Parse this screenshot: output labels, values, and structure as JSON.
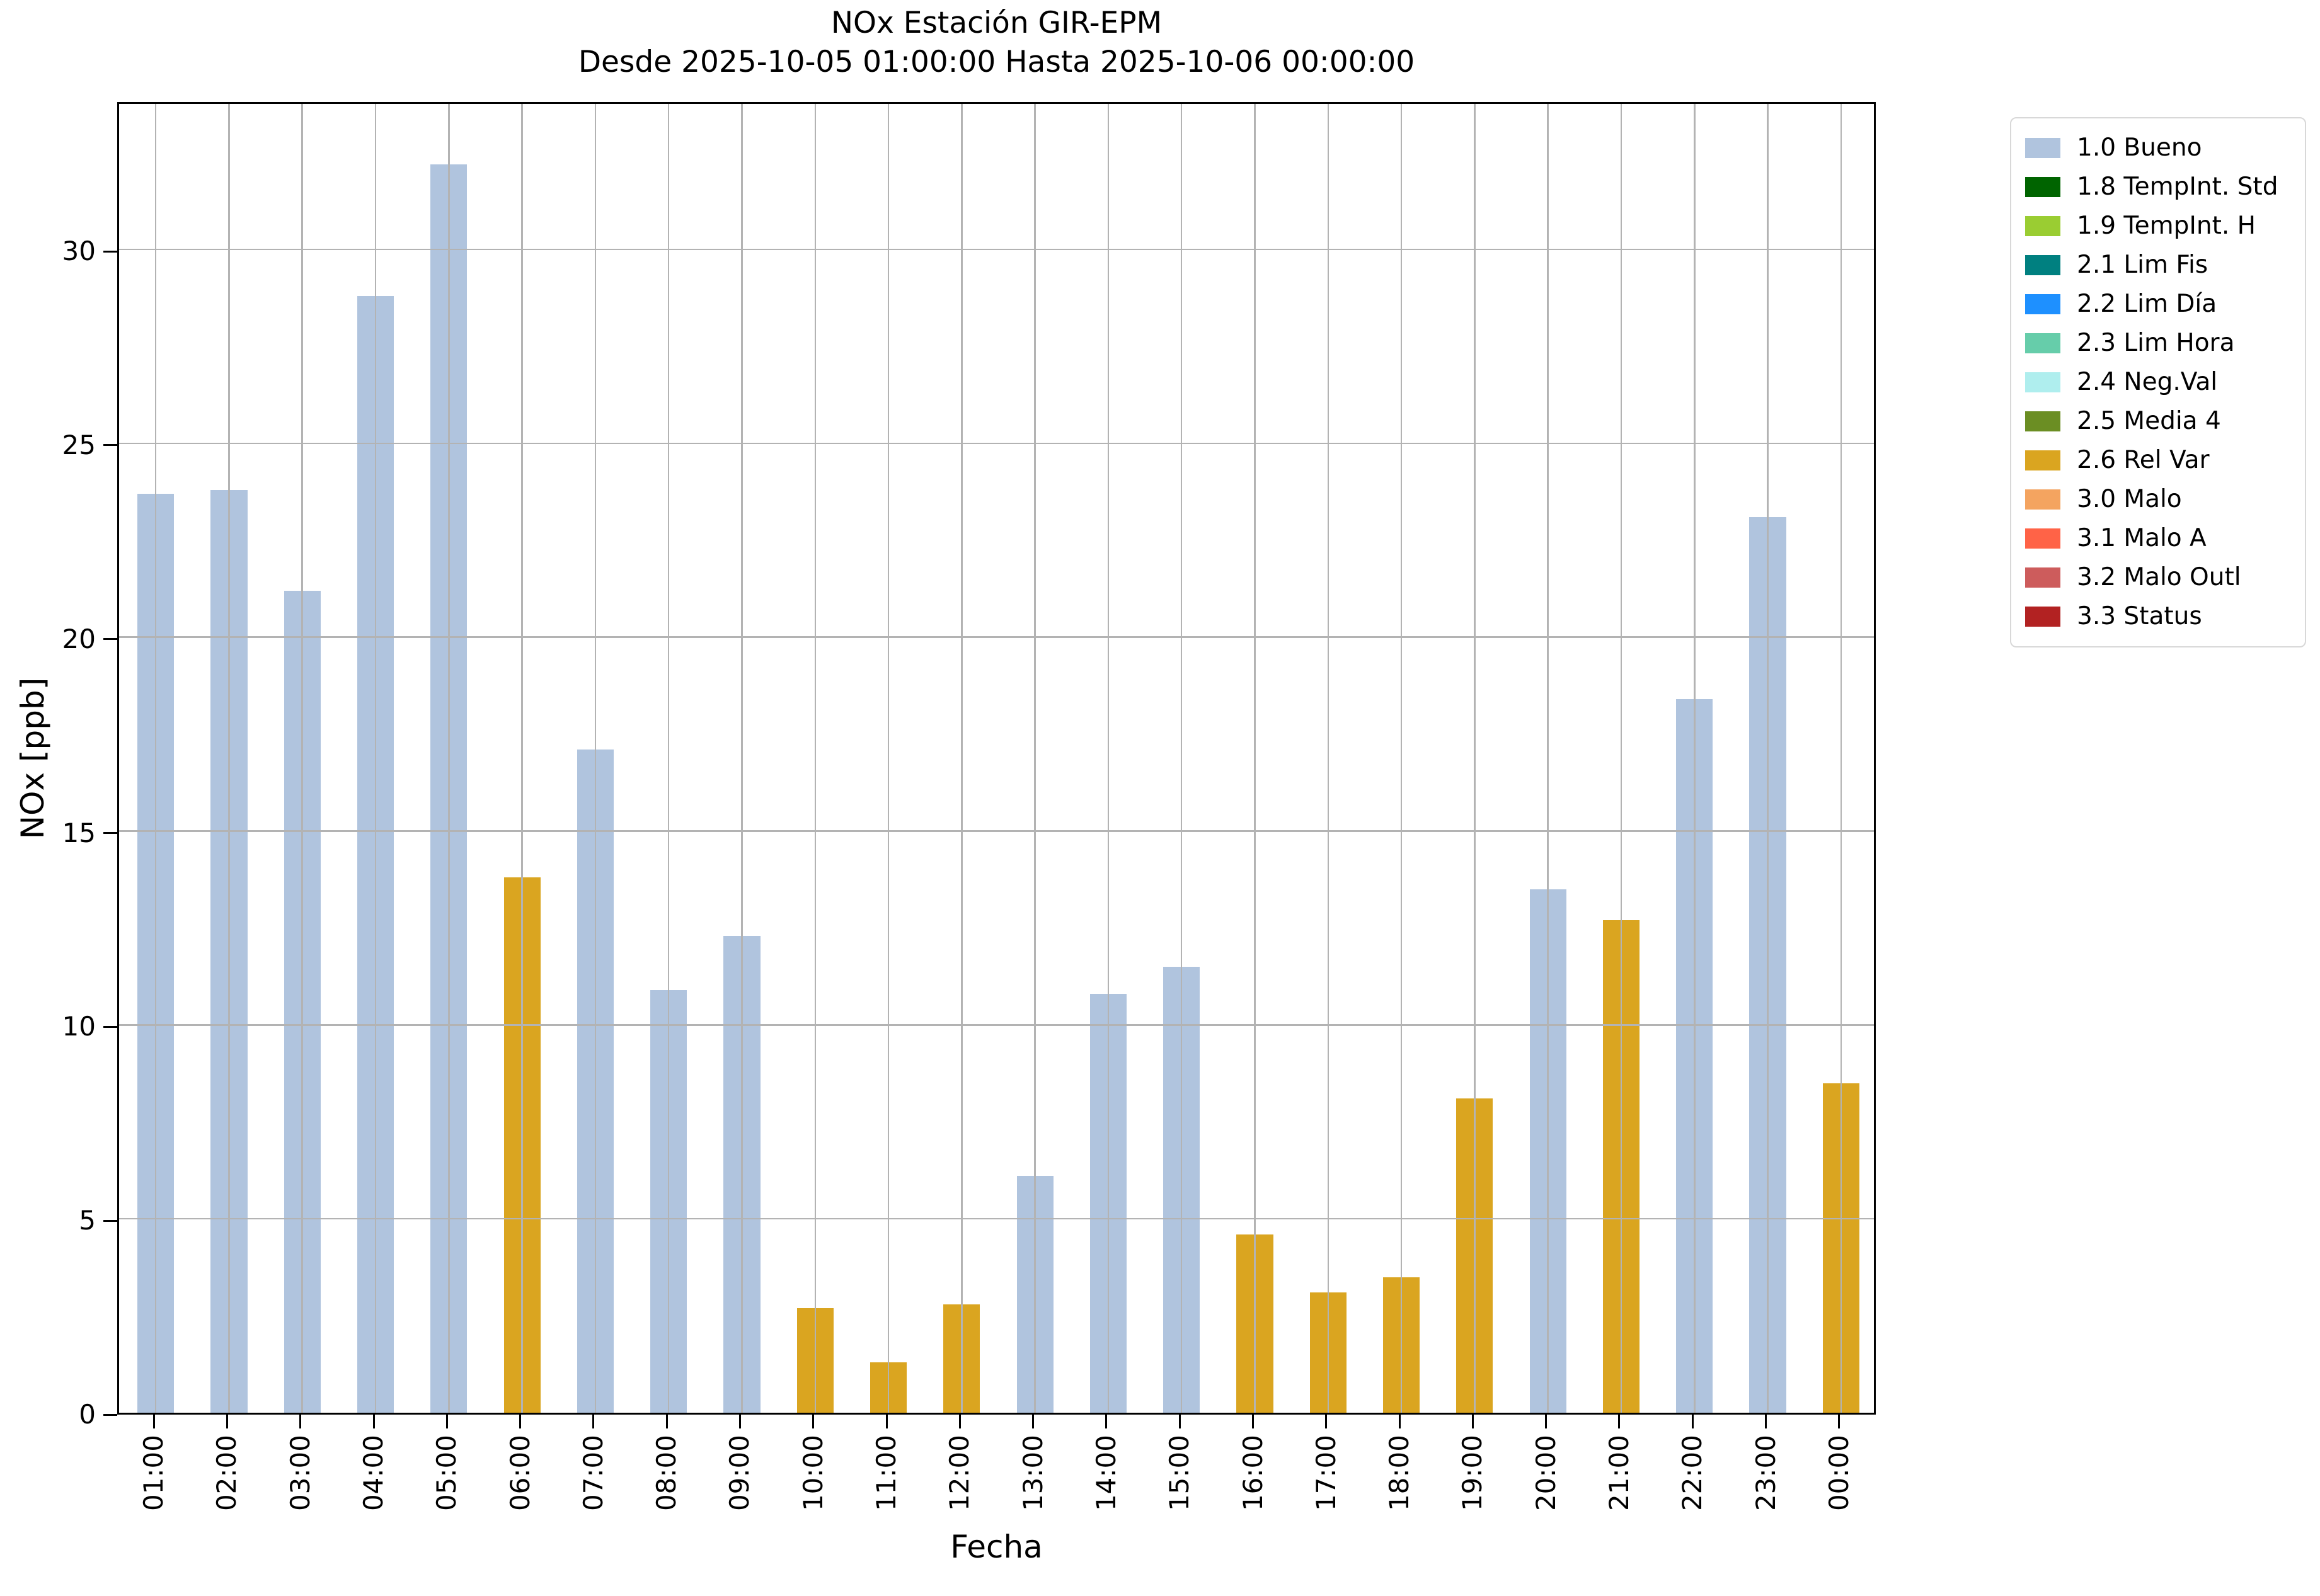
{
  "title": {
    "line1": "NOx Estación GIR-EPM",
    "line2": "Desde 2025-10-05 01:00:00 Hasta 2025-10-06 00:00:00"
  },
  "axes": {
    "ylabel": "NOx [ppb]",
    "xlabel": "Fecha"
  },
  "colors": {
    "bar_bueno": "#b0c4de",
    "bar_relvar": "#daa520",
    "grid": "#b3b3b3",
    "spine": "#000000",
    "legend_border": "#d8d8d8"
  },
  "legend": {
    "items": [
      {
        "label": "1.0 Bueno",
        "color": "#b0c4de"
      },
      {
        "label": "1.8 TempInt. Std",
        "color": "#006400"
      },
      {
        "label": "1.9 TempInt. H",
        "color": "#9acd32"
      },
      {
        "label": "2.1 Lim Fis",
        "color": "#008080"
      },
      {
        "label": "2.2 Lim Día",
        "color": "#1e90ff"
      },
      {
        "label": "2.3 Lim Hora",
        "color": "#66cdaa"
      },
      {
        "label": "2.4 Neg.Val",
        "color": "#afeeee"
      },
      {
        "label": "2.5 Media 4",
        "color": "#6b8e23"
      },
      {
        "label": "2.6 Rel Var",
        "color": "#daa520"
      },
      {
        "label": "3.0 Malo",
        "color": "#f4a460"
      },
      {
        "label": "3.1 Malo A",
        "color": "#ff6347"
      },
      {
        "label": "3.2 Malo Outl",
        "color": "#cd5c5c"
      },
      {
        "label": "3.3 Status",
        "color": "#b22222"
      }
    ]
  },
  "chart_data": {
    "type": "bar",
    "title": "NOx Estación GIR-EPM",
    "subtitle": "Desde 2025-10-05 01:00:00 Hasta 2025-10-06 00:00:00",
    "xlabel": "Fecha",
    "ylabel": "NOx [ppb]",
    "ylim": [
      0,
      33.85
    ],
    "yticks": [
      0,
      5,
      10,
      15,
      20,
      25,
      30
    ],
    "yticklabels": [
      "0",
      "5",
      "10",
      "15",
      "20",
      "25",
      "30"
    ],
    "grid": true,
    "grid_on_top": true,
    "legend_position": "outside-top-right",
    "bar_slot_fraction": 0.5,
    "categories": [
      "01:00",
      "02:00",
      "03:00",
      "04:00",
      "05:00",
      "06:00",
      "07:00",
      "08:00",
      "09:00",
      "10:00",
      "11:00",
      "12:00",
      "13:00",
      "14:00",
      "15:00",
      "16:00",
      "17:00",
      "18:00",
      "19:00",
      "20:00",
      "21:00",
      "22:00",
      "23:00",
      "00:00"
    ],
    "values": [
      23.7,
      23.8,
      21.2,
      28.8,
      32.2,
      13.8,
      17.1,
      10.9,
      12.3,
      2.7,
      1.3,
      2.8,
      6.1,
      10.8,
      11.5,
      4.6,
      3.1,
      3.5,
      8.1,
      13.5,
      12.7,
      18.4,
      23.1,
      8.5
    ],
    "statuses": [
      "1.0 Bueno",
      "1.0 Bueno",
      "1.0 Bueno",
      "1.0 Bueno",
      "1.0 Bueno",
      "2.6 Rel Var",
      "1.0 Bueno",
      "1.0 Bueno",
      "1.0 Bueno",
      "2.6 Rel Var",
      "2.6 Rel Var",
      "2.6 Rel Var",
      "1.0 Bueno",
      "1.0 Bueno",
      "1.0 Bueno",
      "2.6 Rel Var",
      "2.6 Rel Var",
      "2.6 Rel Var",
      "2.6 Rel Var",
      "1.0 Bueno",
      "2.6 Rel Var",
      "1.0 Bueno",
      "1.0 Bueno",
      "2.6 Rel Var"
    ],
    "status_colors": {
      "1.0 Bueno": "#b0c4de",
      "2.6 Rel Var": "#daa520"
    }
  }
}
